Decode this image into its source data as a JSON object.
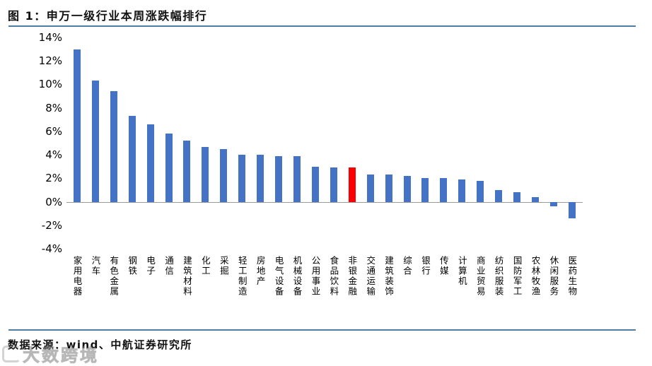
{
  "title": "图 1：申万一级行业本周涨跌幅排行",
  "footer": {
    "source_label": "数据来源：wind、中航证券研究所"
  },
  "watermark": {
    "text": "大数跨境"
  },
  "colors": {
    "bar_blue": "#4472C4",
    "bar_red": "#FB0000",
    "divider_blue": "#4F7CA5",
    "axis_gray": "#9B9B9B"
  },
  "chart_data": {
    "type": "bar",
    "title": "申万一级行业本周涨跌幅排行",
    "categories": [
      "家用电器",
      "汽车",
      "有色金属",
      "钢铁",
      "电子",
      "通信",
      "建筑材料",
      "化工",
      "采掘",
      "轻工制造",
      "房地产",
      "电气设备",
      "机械设备",
      "公用事业",
      "食品饮料",
      "非银金融",
      "交通运输",
      "建筑装饰",
      "综合",
      "银行",
      "传媒",
      "计算机",
      "商业贸易",
      "纺织服装",
      "国防军工",
      "农林牧渔",
      "休闲服务",
      "医药生物"
    ],
    "values": [
      13.0,
      10.3,
      9.4,
      7.3,
      6.6,
      5.8,
      5.2,
      4.7,
      4.5,
      4.0,
      4.0,
      3.9,
      3.9,
      3.0,
      2.9,
      2.9,
      2.3,
      2.3,
      2.2,
      2.0,
      2.0,
      1.9,
      1.8,
      1.0,
      0.8,
      0.4,
      -0.4,
      -1.4
    ],
    "value_unit": "%",
    "highlight_index": 15,
    "highlight_category": "非银金融",
    "highlight_note": "非银金融 bar drawn in red, all other bars blue",
    "y_ticks": [
      "14%",
      "12%",
      "10%",
      "8%",
      "6%",
      "4%",
      "2%",
      "0%",
      "-2%",
      "-4%"
    ],
    "ylim": [
      -4,
      14
    ],
    "xlabel": "",
    "ylabel": "",
    "grid": false,
    "legend": false
  }
}
